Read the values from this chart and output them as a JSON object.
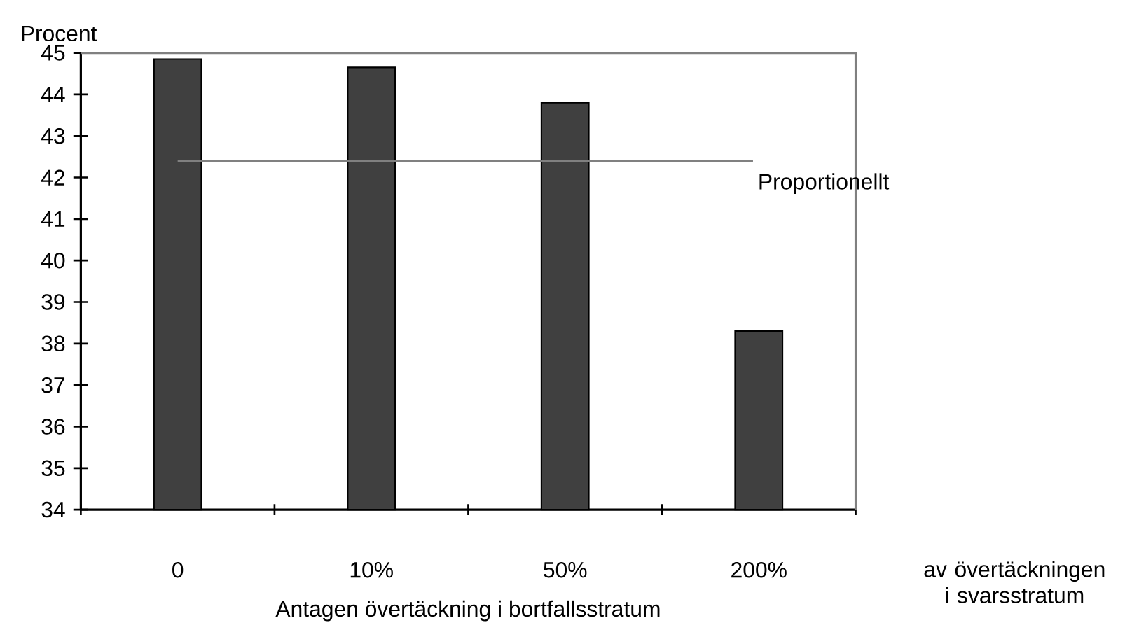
{
  "chart_data": {
    "type": "bar",
    "ylabel": "Procent",
    "xlabel": "Antagen övertäckning i bortfallsstratum",
    "categories": [
      "0",
      "10%",
      "50%",
      "200%"
    ],
    "values": [
      44.85,
      44.65,
      43.8,
      38.3
    ],
    "color": "#404040",
    "ylim": [
      34,
      45
    ],
    "yticks": [
      34,
      35,
      36,
      37,
      38,
      39,
      40,
      41,
      42,
      43,
      44,
      45
    ],
    "ref_lines": [
      {
        "axis": "y",
        "value": 42.4,
        "label": "Proportionellt",
        "color": "#808080"
      }
    ],
    "annotations": [
      "av övertäckningen i svarsstratum"
    ]
  }
}
